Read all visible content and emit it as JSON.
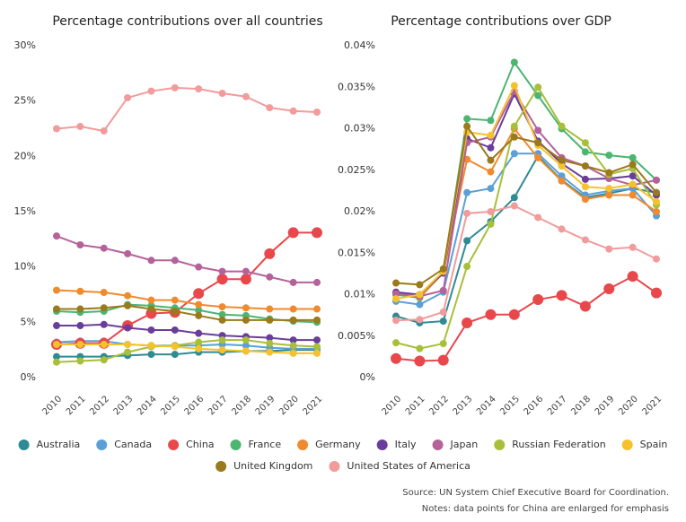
{
  "chart_data": [
    {
      "type": "line",
      "title": "Percentage contributions over all countries",
      "x": [
        "2010",
        "2011",
        "2012",
        "2013",
        "2014",
        "2015",
        "2016",
        "2017",
        "2018",
        "2019",
        "2020",
        "2021"
      ],
      "ylim": [
        0,
        30
      ],
      "yticks": [
        {
          "value": 0,
          "label": "0%"
        },
        {
          "value": 5,
          "label": "5%"
        },
        {
          "value": 10,
          "label": "10%"
        },
        {
          "value": 15,
          "label": "15%"
        },
        {
          "value": 20,
          "label": "20%"
        },
        {
          "value": 25,
          "label": "25%"
        },
        {
          "value": 30,
          "label": "30%"
        }
      ],
      "series": [
        {
          "name": "Australia",
          "color": "#2e8b94",
          "values": [
            1.9,
            1.9,
            1.9,
            2.0,
            2.1,
            2.1,
            2.3,
            2.3,
            2.4,
            2.4,
            2.5,
            2.5
          ]
        },
        {
          "name": "Canada",
          "color": "#5aa0d8",
          "values": [
            3.2,
            3.3,
            3.3,
            3.0,
            2.9,
            2.9,
            2.9,
            3.0,
            2.9,
            2.7,
            2.6,
            2.6
          ]
        },
        {
          "name": "China",
          "color": "#e8474b",
          "emphasized": true,
          "values": [
            3.0,
            3.1,
            3.1,
            4.7,
            5.8,
            5.9,
            7.6,
            8.9,
            8.9,
            11.2,
            13.1,
            13.1
          ]
        },
        {
          "name": "France",
          "color": "#4cb572",
          "values": [
            6.0,
            5.9,
            6.0,
            6.6,
            6.5,
            6.3,
            6.1,
            5.7,
            5.6,
            5.3,
            5.1,
            5.0
          ]
        },
        {
          "name": "Germany",
          "color": "#f08a2e",
          "values": [
            7.9,
            7.8,
            7.7,
            7.4,
            7.0,
            7.0,
            6.6,
            6.4,
            6.3,
            6.2,
            6.2,
            6.2
          ]
        },
        {
          "name": "Italy",
          "color": "#6a3d9a",
          "values": [
            4.7,
            4.7,
            4.8,
            4.5,
            4.3,
            4.3,
            4.0,
            3.8,
            3.7,
            3.6,
            3.4,
            3.4
          ]
        },
        {
          "name": "Japan",
          "color": "#b5629a",
          "values": [
            12.8,
            12.0,
            11.7,
            11.2,
            10.6,
            10.6,
            10.0,
            9.6,
            9.6,
            9.1,
            8.6,
            8.6
          ]
        },
        {
          "name": "Russian Federation",
          "color": "#a8bf3a",
          "values": [
            1.4,
            1.5,
            1.6,
            2.3,
            2.8,
            2.9,
            3.2,
            3.4,
            3.4,
            3.1,
            2.9,
            2.8
          ]
        },
        {
          "name": "Spain",
          "color": "#f5c22e",
          "values": [
            3.0,
            3.0,
            3.0,
            3.0,
            2.9,
            2.8,
            2.6,
            2.5,
            2.4,
            2.3,
            2.2,
            2.2
          ]
        },
        {
          "name": "United Kingdom",
          "color": "#9a7a1c",
          "values": [
            6.2,
            6.2,
            6.3,
            6.5,
            6.2,
            6.0,
            5.6,
            5.2,
            5.2,
            5.2,
            5.2,
            5.2
          ]
        },
        {
          "name": "United States of America",
          "color": "#f29b9b",
          "values": [
            22.5,
            22.7,
            22.3,
            25.3,
            25.9,
            26.2,
            26.1,
            25.7,
            25.4,
            24.4,
            24.1,
            24.0
          ]
        }
      ]
    },
    {
      "type": "line",
      "title": "Percentage contributions over GDP",
      "x": [
        "2010",
        "2011",
        "2012",
        "2013",
        "2014",
        "2015",
        "2016",
        "2017",
        "2018",
        "2019",
        "2020",
        "2021"
      ],
      "ylim": [
        0,
        0.04
      ],
      "yticks": [
        {
          "value": 0,
          "label": "0%"
        },
        {
          "value": 0.005,
          "label": "0.005%"
        },
        {
          "value": 0.01,
          "label": "0.01%"
        },
        {
          "value": 0.015,
          "label": "0.015%"
        },
        {
          "value": 0.02,
          "label": "0.02%"
        },
        {
          "value": 0.025,
          "label": "0.025%"
        },
        {
          "value": 0.03,
          "label": "0.03%"
        },
        {
          "value": 0.035,
          "label": "0.035%"
        },
        {
          "value": 0.04,
          "label": "0.04%"
        }
      ],
      "series": [
        {
          "name": "Australia",
          "color": "#2e8b94",
          "values": [
            0.0074,
            0.0066,
            0.0068,
            0.0165,
            0.0188,
            0.0217,
            0.0267,
            0.0238,
            0.0217,
            0.0222,
            0.0228,
            0.0223
          ]
        },
        {
          "name": "Canada",
          "color": "#5aa0d8",
          "values": [
            0.0092,
            0.0088,
            0.0103,
            0.0223,
            0.0228,
            0.027,
            0.027,
            0.0243,
            0.022,
            0.0225,
            0.0228,
            0.0195
          ]
        },
        {
          "name": "China",
          "color": "#e8474b",
          "emphasized": true,
          "values": [
            0.0023,
            0.002,
            0.0021,
            0.0066,
            0.0076,
            0.0076,
            0.0094,
            0.0099,
            0.0086,
            0.0107,
            0.0122,
            0.0102
          ]
        },
        {
          "name": "France",
          "color": "#4cb572",
          "values": [
            0.01,
            0.0096,
            0.0127,
            0.0312,
            0.031,
            0.038,
            0.034,
            0.03,
            0.0272,
            0.0268,
            0.0265,
            0.0238
          ]
        },
        {
          "name": "Germany",
          "color": "#f08a2e",
          "values": [
            0.0102,
            0.0097,
            0.0126,
            0.0263,
            0.0248,
            0.03,
            0.0265,
            0.0237,
            0.0215,
            0.022,
            0.022,
            0.02
          ]
        },
        {
          "name": "Italy",
          "color": "#6a3d9a",
          "values": [
            0.0103,
            0.01,
            0.0126,
            0.0288,
            0.0277,
            0.0342,
            0.0285,
            0.0258,
            0.0239,
            0.024,
            0.0243,
            0.022
          ]
        },
        {
          "name": "Japan",
          "color": "#b5629a",
          "values": [
            0.0101,
            0.0098,
            0.0105,
            0.0283,
            0.029,
            0.0345,
            0.0298,
            0.0265,
            0.0255,
            0.024,
            0.0232,
            0.0238
          ]
        },
        {
          "name": "Russian Federation",
          "color": "#a8bf3a",
          "values": [
            0.0042,
            0.0035,
            0.0041,
            0.0134,
            0.0185,
            0.0303,
            0.035,
            0.0303,
            0.0283,
            0.0245,
            0.0252,
            0.0208
          ]
        },
        {
          "name": "Spain",
          "color": "#f5c22e",
          "values": [
            0.0095,
            0.01,
            0.0128,
            0.0296,
            0.0292,
            0.0352,
            0.028,
            0.0255,
            0.023,
            0.0228,
            0.0233,
            0.0212
          ]
        },
        {
          "name": "United Kingdom",
          "color": "#9a7a1c",
          "values": [
            0.0114,
            0.0112,
            0.0131,
            0.0303,
            0.0262,
            0.029,
            0.0283,
            0.0262,
            0.0255,
            0.0247,
            0.0257,
            0.0223
          ]
        },
        {
          "name": "United States of America",
          "color": "#f29b9b",
          "values": [
            0.0069,
            0.007,
            0.0079,
            0.0198,
            0.02,
            0.0207,
            0.0193,
            0.0179,
            0.0166,
            0.0155,
            0.0157,
            0.0143
          ]
        }
      ]
    }
  ],
  "source": "Source: UN System Chief Executive Board for Coordination.",
  "note": "Notes: data points for China are enlarged for emphasis"
}
